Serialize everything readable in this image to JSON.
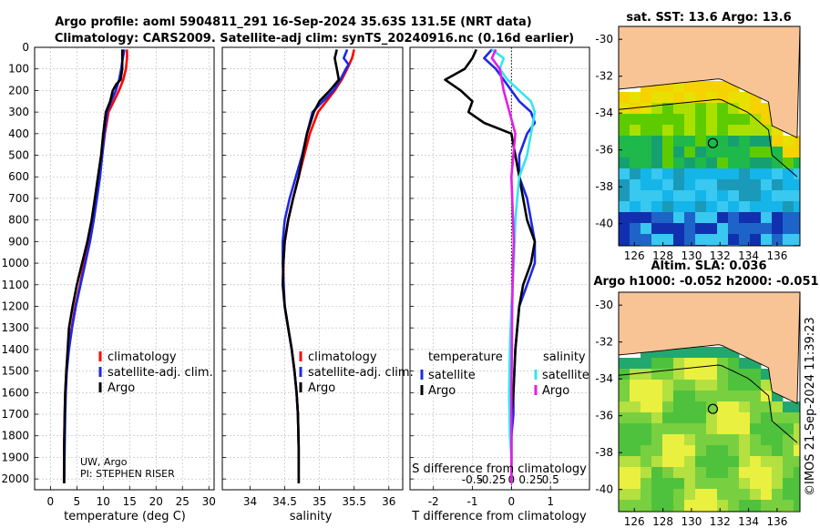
{
  "header": {
    "title_line1": "Argo profile: aoml 5904811_291 16-Sep-2024 35.63S 131.5E (NRT data)",
    "title_line2": "Climatology: CARS2009. Satellite-adj clim: synTS_20240916.nc (0.16d earlier)"
  },
  "colors": {
    "climatology": "#ff0000",
    "satellite": "#1e28e6",
    "argo": "#000000",
    "salinity_satellite": "#33e5f0",
    "salinity_argo": "#e41ee4",
    "land": "#f8c496"
  },
  "attribution": {
    "line1": "UW, Argo",
    "line2": "PI: STEPHEN RISER"
  },
  "timestamp": "©IMOS 21-Sep-2024 11:39:23",
  "depth_ticks": [
    "0",
    "100",
    "200",
    "300",
    "400",
    "500",
    "600",
    "700",
    "800",
    "900",
    "1000",
    "1100",
    "1200",
    "1300",
    "1400",
    "1500",
    "1600",
    "1700",
    "1800",
    "1900",
    "2000"
  ],
  "chart_data": [
    {
      "type": "line",
      "name": "temperature",
      "xlabel": "temperature (deg C)",
      "xlim": [
        -3,
        31
      ],
      "ylim": [
        2050,
        0
      ],
      "xticks": [
        "0",
        "5",
        "10",
        "15",
        "20",
        "25",
        "30"
      ],
      "legend": {
        "placement": "lower-right",
        "entries": [
          "climatology",
          "satellite-adj. clim.",
          "Argo"
        ]
      },
      "series": [
        {
          "name": "climatology",
          "x": [
            14.5,
            14.5,
            14.3,
            13.8,
            13.0,
            12.0,
            11.0,
            10.3,
            9.8,
            9.2,
            8.6,
            7.9,
            7.2,
            6.4,
            5.6,
            4.7,
            4.0,
            3.4,
            3.0,
            2.8,
            2.7,
            2.6,
            2.55
          ],
          "y": [
            10,
            50,
            100,
            150,
            200,
            250,
            300,
            400,
            500,
            600,
            700,
            800,
            900,
            1000,
            1100,
            1200,
            1300,
            1400,
            1500,
            1600,
            1700,
            1850,
            2020
          ]
        },
        {
          "name": "satellite-adj. clim.",
          "x": [
            14.0,
            13.7,
            13.4,
            13.0,
            12.4,
            11.5,
            10.7,
            10.2,
            9.8,
            9.4,
            8.8,
            8.2,
            7.5,
            6.6,
            5.7,
            4.8,
            4.1,
            3.5,
            3.1,
            2.9,
            2.8,
            2.7,
            2.6
          ],
          "y": [
            10,
            50,
            100,
            150,
            200,
            250,
            300,
            400,
            500,
            600,
            700,
            800,
            900,
            1000,
            1100,
            1200,
            1300,
            1400,
            1500,
            1600,
            1700,
            1850,
            2020
          ]
        },
        {
          "name": "Argo",
          "x": [
            13.6,
            13.6,
            13.6,
            13.3,
            12.5,
            11.8,
            11.3,
            10.5,
            10.0,
            9.6,
            9.0,
            8.4,
            7.8,
            7.0,
            6.0,
            5.0,
            4.2,
            3.5,
            3.0,
            2.8,
            2.7,
            2.6,
            2.6
          ],
          "y": [
            10,
            50,
            100,
            150,
            170,
            200,
            250,
            300,
            400,
            500,
            600,
            700,
            800,
            900,
            1000,
            1100,
            1200,
            1300,
            1500,
            1600,
            1700,
            1850,
            2020
          ]
        }
      ]
    },
    {
      "type": "line",
      "name": "salinity",
      "xlabel": "salinity",
      "xlim": [
        33.6,
        36.2
      ],
      "ylim": [
        2050,
        0
      ],
      "xticks": [
        "34",
        "34.5",
        "35",
        "35.5",
        "36"
      ],
      "legend": {
        "placement": "lower-right",
        "entries": [
          "climatology",
          "satellite-adj. clim.",
          "Argo"
        ]
      },
      "series": [
        {
          "name": "climatology",
          "x": [
            35.5,
            35.47,
            35.4,
            35.32,
            35.22,
            35.1,
            34.98,
            34.86,
            34.78,
            34.7,
            34.62,
            34.55,
            34.5,
            34.48,
            34.48,
            34.5,
            34.55,
            34.6,
            34.64,
            34.67,
            34.69,
            34.7,
            34.7
          ],
          "y": [
            10,
            50,
            100,
            150,
            200,
            250,
            300,
            400,
            500,
            600,
            700,
            800,
            900,
            1000,
            1100,
            1200,
            1300,
            1400,
            1500,
            1600,
            1700,
            1850,
            2020
          ]
        },
        {
          "name": "satellite-adj. clim.",
          "x": [
            35.4,
            35.35,
            35.42,
            35.38,
            35.3,
            35.2,
            35.05,
            34.9,
            34.82,
            34.75,
            34.66,
            34.57,
            34.5,
            34.47,
            34.47,
            34.5,
            34.55,
            34.6,
            34.64,
            34.67,
            34.69,
            34.7,
            34.7
          ],
          "y": [
            10,
            50,
            80,
            100,
            150,
            200,
            250,
            300,
            400,
            500,
            600,
            700,
            800,
            900,
            1000,
            1200,
            1300,
            1400,
            1500,
            1600,
            1700,
            1850,
            2020
          ]
        },
        {
          "name": "Argo",
          "x": [
            35.25,
            35.22,
            35.25,
            35.28,
            35.15,
            35.0,
            34.92,
            34.82,
            34.76,
            34.7,
            34.62,
            34.55,
            34.5,
            34.48,
            34.47,
            34.5,
            34.55,
            34.6,
            34.64,
            34.67,
            34.69,
            34.7,
            34.7
          ],
          "y": [
            10,
            50,
            100,
            150,
            200,
            250,
            300,
            400,
            500,
            600,
            700,
            800,
            900,
            1000,
            1100,
            1200,
            1300,
            1400,
            1500,
            1600,
            1700,
            1850,
            2020
          ]
        }
      ]
    },
    {
      "type": "line",
      "name": "differences",
      "xlabel": "T difference from climatology",
      "xlabel2": "S difference from climatology",
      "xlim": [
        -2.6,
        2.0
      ],
      "ylim": [
        2050,
        0
      ],
      "xticks": [
        "-2",
        "-1",
        "0",
        "1"
      ],
      "xticks_s": [
        "-0.5",
        "-0.25",
        "0",
        "0.25",
        "0.5"
      ],
      "legend_left": {
        "placement": "lower-left",
        "heading": "temperature",
        "entries": [
          "satellite",
          "Argo"
        ]
      },
      "legend_right": {
        "placement": "lower-right",
        "heading": "salinity",
        "entries": [
          "satellite",
          "Argo"
        ]
      },
      "series": [
        {
          "name": "temperature satellite",
          "x": [
            -0.5,
            -0.7,
            -0.4,
            -0.2,
            0.0,
            0.2,
            0.5,
            0.6,
            0.4,
            0.2,
            0.2,
            0.4,
            0.5,
            0.6,
            0.6,
            0.4,
            0.2,
            0.1,
            0.05,
            0.05,
            0.0,
            0.0,
            0.0
          ],
          "y": [
            10,
            50,
            100,
            150,
            200,
            250,
            300,
            350,
            400,
            500,
            600,
            700,
            800,
            900,
            1000,
            1100,
            1200,
            1400,
            1600,
            1700,
            1800,
            1900,
            2020
          ]
        },
        {
          "name": "temperature Argo",
          "x": [
            -0.9,
            -1.0,
            -1.2,
            -1.7,
            -1.3,
            -1.0,
            -1.1,
            -0.7,
            0.0,
            0.1,
            0.2,
            0.3,
            0.4,
            0.6,
            0.5,
            0.3,
            0.2,
            0.1,
            0.05,
            0.0,
            0.0,
            0.0
          ],
          "y": [
            10,
            50,
            100,
            150,
            200,
            250,
            300,
            350,
            400,
            500,
            600,
            700,
            800,
            900,
            1000,
            1100,
            1200,
            1400,
            1600,
            1700,
            1800,
            2020
          ]
        },
        {
          "name": "salinity satellite",
          "x": [
            -0.25,
            -0.1,
            -0.15,
            -0.05,
            0.1,
            0.25,
            0.3,
            0.25,
            0.2,
            0.1,
            0.05,
            0.03,
            0.0,
            -0.02,
            -0.03,
            -0.02,
            0.0,
            0.0
          ],
          "y": [
            10,
            50,
            100,
            150,
            200,
            250,
            300,
            400,
            500,
            600,
            800,
            1000,
            1200,
            1400,
            1600,
            1800,
            1900,
            2020
          ]
        },
        {
          "name": "salinity Argo",
          "x": [
            -0.2,
            -0.25,
            -0.15,
            -0.1,
            0.05,
            0.0,
            0.02,
            0.03,
            0.02,
            0.01,
            0.0,
            0.0
          ],
          "y": [
            10,
            50,
            100,
            200,
            400,
            600,
            800,
            900,
            1000,
            1200,
            1600,
            2020
          ]
        }
      ]
    }
  ],
  "maps": {
    "sst": {
      "title": "sat. SST: 13.6 Argo: 13.6",
      "lat_ticks": [
        "-30",
        "-32",
        "-34",
        "-36",
        "-38",
        "-40"
      ],
      "lon_ticks": [
        "126",
        "128",
        "130",
        "132",
        "134",
        "136"
      ]
    },
    "sla": {
      "title1": "Altim. SLA: 0.036",
      "title2": "Argo h1000: -0.052 h2000: -0.051",
      "lat_ticks": [
        "-30",
        "-32",
        "-34",
        "-36",
        "-38",
        "-40"
      ],
      "lon_ticks": [
        "126",
        "128",
        "130",
        "132",
        "134",
        "136"
      ]
    }
  }
}
